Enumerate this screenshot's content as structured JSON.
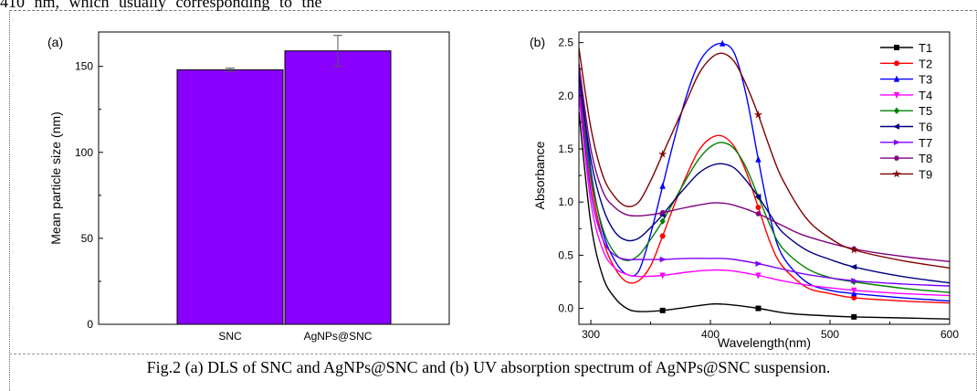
{
  "page": {
    "top_text": "410 nm, which usually corresponding to the",
    "caption": "Fig.2 (a) DLS of SNC and AgNPs@SNC and (b) UV absorption spectrum of AgNPs@SNC suspension."
  },
  "chart_data": [
    {
      "type": "bar",
      "panel_label": "(a)",
      "categories": [
        "SNC",
        "AgNPs@SNC"
      ],
      "values": [
        148,
        159
      ],
      "errors": [
        1,
        9
      ],
      "title": "",
      "xlabel": "",
      "ylabel": "Mean particle size (nm)",
      "ylim": [
        0,
        170
      ],
      "yticks": [
        0,
        50,
        100,
        150
      ],
      "bar_color": "#8a00ff",
      "grid": false
    },
    {
      "type": "line",
      "panel_label": "(b)",
      "title": "",
      "xlabel": "Wavelength(nm)",
      "ylabel": "Absorbance",
      "xlim": [
        290,
        600
      ],
      "ylim": [
        -0.15,
        2.6
      ],
      "xticks": [
        300,
        400,
        500,
        600
      ],
      "yticks": [
        0.0,
        0.5,
        1.0,
        1.5,
        2.0,
        2.5
      ],
      "legend_position": "top-right",
      "grid": false,
      "series": [
        {
          "name": "T1",
          "color": "#000000",
          "marker": "square",
          "x": [
            290,
            300,
            310,
            320,
            330,
            340,
            360,
            380,
            400,
            410,
            420,
            440,
            460,
            480,
            520,
            560,
            600
          ],
          "y": [
            1.85,
            0.8,
            0.3,
            0.1,
            0.0,
            -0.03,
            -0.02,
            0.01,
            0.04,
            0.04,
            0.03,
            0.0,
            -0.04,
            -0.06,
            -0.08,
            -0.09,
            -0.1
          ],
          "markers_at": [
            360,
            440,
            520
          ]
        },
        {
          "name": "T2",
          "color": "#ff0000",
          "marker": "circle",
          "x": [
            290,
            300,
            310,
            320,
            330,
            340,
            350,
            360,
            370,
            380,
            390,
            400,
            410,
            420,
            430,
            440,
            450,
            460,
            480,
            500,
            520,
            560,
            600
          ],
          "y": [
            2.2,
            1.2,
            0.65,
            0.38,
            0.25,
            0.26,
            0.4,
            0.68,
            0.98,
            1.25,
            1.48,
            1.6,
            1.62,
            1.52,
            1.28,
            0.95,
            0.62,
            0.4,
            0.2,
            0.14,
            0.1,
            0.07,
            0.05
          ],
          "markers_at": [
            360,
            440,
            520
          ]
        },
        {
          "name": "T3",
          "color": "#0000ff",
          "marker": "triangle-up",
          "x": [
            290,
            300,
            310,
            320,
            330,
            340,
            350,
            360,
            370,
            380,
            390,
            400,
            410,
            420,
            430,
            440,
            450,
            460,
            480,
            500,
            520,
            560,
            600
          ],
          "y": [
            2.3,
            1.3,
            0.72,
            0.45,
            0.32,
            0.35,
            0.7,
            1.15,
            1.6,
            2.0,
            2.3,
            2.45,
            2.49,
            2.4,
            2.0,
            1.4,
            0.85,
            0.5,
            0.25,
            0.17,
            0.14,
            0.1,
            0.07
          ],
          "markers_at": [
            360,
            410,
            440,
            520
          ]
        },
        {
          "name": "T4",
          "color": "#ff00ff",
          "marker": "triangle-down",
          "x": [
            290,
            300,
            310,
            320,
            330,
            340,
            360,
            380,
            400,
            410,
            420,
            440,
            460,
            480,
            520,
            560,
            600
          ],
          "y": [
            2.0,
            1.0,
            0.55,
            0.38,
            0.32,
            0.3,
            0.31,
            0.34,
            0.36,
            0.36,
            0.35,
            0.31,
            0.26,
            0.22,
            0.17,
            0.14,
            0.12
          ],
          "markers_at": [
            360,
            440,
            520
          ]
        },
        {
          "name": "T5",
          "color": "#008000",
          "marker": "diamond",
          "x": [
            290,
            300,
            310,
            320,
            330,
            340,
            350,
            360,
            370,
            380,
            390,
            400,
            410,
            420,
            430,
            440,
            450,
            460,
            480,
            500,
            520,
            560,
            600
          ],
          "y": [
            2.1,
            1.25,
            0.75,
            0.52,
            0.45,
            0.5,
            0.65,
            0.82,
            1.02,
            1.22,
            1.4,
            1.52,
            1.56,
            1.5,
            1.32,
            1.05,
            0.78,
            0.57,
            0.38,
            0.29,
            0.25,
            0.19,
            0.15
          ],
          "markers_at": [
            360,
            440,
            520
          ]
        },
        {
          "name": "T6",
          "color": "#000080",
          "marker": "triangle-left",
          "x": [
            290,
            300,
            310,
            320,
            330,
            340,
            350,
            360,
            370,
            380,
            390,
            400,
            410,
            420,
            430,
            440,
            450,
            460,
            480,
            500,
            520,
            560,
            600
          ],
          "y": [
            2.2,
            1.4,
            0.95,
            0.72,
            0.64,
            0.66,
            0.76,
            0.88,
            1.02,
            1.15,
            1.27,
            1.34,
            1.36,
            1.32,
            1.2,
            1.05,
            0.88,
            0.72,
            0.55,
            0.46,
            0.39,
            0.3,
            0.24
          ],
          "markers_at": [
            360,
            440,
            520
          ]
        },
        {
          "name": "T7",
          "color": "#8000ff",
          "marker": "triangle-right",
          "x": [
            290,
            300,
            310,
            320,
            330,
            340,
            360,
            380,
            400,
            410,
            420,
            440,
            460,
            480,
            520,
            560,
            600
          ],
          "y": [
            2.1,
            1.1,
            0.65,
            0.5,
            0.46,
            0.46,
            0.46,
            0.47,
            0.47,
            0.47,
            0.46,
            0.42,
            0.37,
            0.32,
            0.26,
            0.23,
            0.21
          ],
          "markers_at": [
            360,
            440,
            520
          ]
        },
        {
          "name": "T8",
          "color": "#800080",
          "marker": "hexagon",
          "x": [
            290,
            300,
            310,
            320,
            330,
            340,
            350,
            360,
            380,
            400,
            410,
            420,
            440,
            460,
            480,
            520,
            560,
            600
          ],
          "y": [
            2.3,
            1.5,
            1.1,
            0.95,
            0.88,
            0.87,
            0.88,
            0.9,
            0.95,
            0.99,
            0.99,
            0.97,
            0.89,
            0.78,
            0.68,
            0.56,
            0.49,
            0.44
          ],
          "markers_at": [
            360,
            440,
            520
          ]
        },
        {
          "name": "T9",
          "color": "#800000",
          "marker": "star",
          "x": [
            290,
            300,
            310,
            320,
            330,
            340,
            350,
            360,
            370,
            380,
            390,
            400,
            410,
            420,
            430,
            440,
            450,
            460,
            480,
            500,
            520,
            560,
            600
          ],
          "y": [
            2.45,
            1.7,
            1.25,
            1.05,
            0.96,
            1.0,
            1.2,
            1.45,
            1.7,
            1.95,
            2.2,
            2.35,
            2.4,
            2.32,
            2.1,
            1.82,
            1.5,
            1.22,
            0.85,
            0.66,
            0.55,
            0.45,
            0.38
          ],
          "markers_at": [
            360,
            440,
            520
          ]
        }
      ]
    }
  ]
}
